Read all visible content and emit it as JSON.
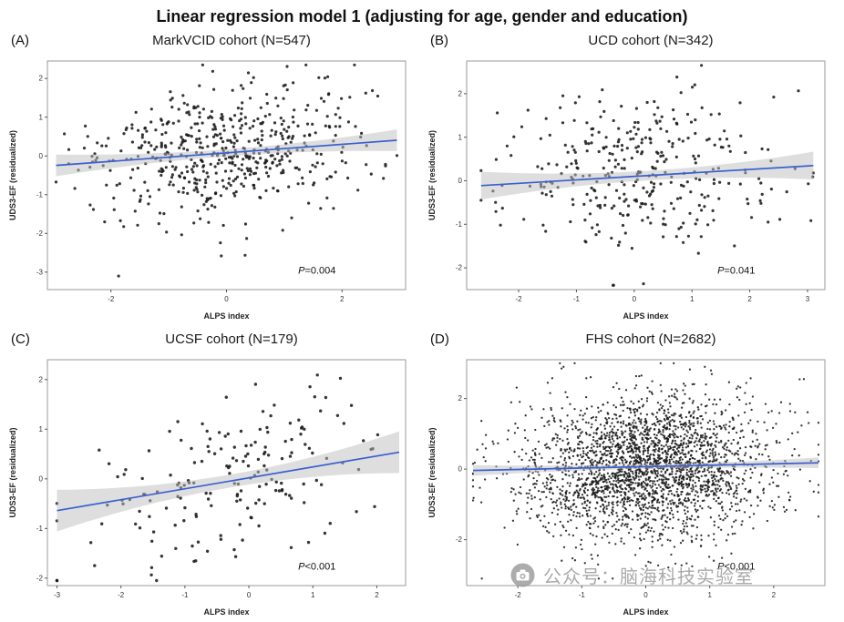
{
  "page": {
    "title": "Linear regression model 1 (adjusting for age, gender and education)"
  },
  "watermark": {
    "icon": "camera-icon",
    "text": "公众号：脑海科技实验室"
  },
  "colors": {
    "point": "#1a1a1a",
    "line": "#3a5fd0",
    "band": "#bdbdbd",
    "border": "#9a9a9a",
    "tick": "#555555",
    "text": "#222222"
  },
  "chart_data": [
    {
      "panel": "(A)",
      "title": "MarkVCID cohort (N=547)",
      "type": "scatter",
      "n": 547,
      "xlabel": "ALPS index",
      "ylabel": "UDS3-EF (residualized)",
      "p_prefix": "P",
      "p_rest": "=0.004",
      "xlim": [
        -3.1,
        3.1
      ],
      "ylim": [
        -3.45,
        2.45
      ],
      "xticks": [
        -2,
        0,
        2
      ],
      "yticks": [
        -3,
        -2,
        -1,
        0,
        1,
        2
      ],
      "regression": {
        "intercept": 0.08,
        "slope": 0.11,
        "x0": -2.95,
        "x1": 2.95
      },
      "band": {
        "center_halfwidth": 0.09,
        "edge_halfwidth": 0.28
      },
      "scatter": {
        "seed": 11,
        "x_mean": 0.0,
        "x_sd": 1.15,
        "x_clip": [
          -2.95,
          2.95
        ],
        "noise_sd": 0.82,
        "y_clip": [
          -3.3,
          2.35
        ],
        "point_radius": 1.6
      }
    },
    {
      "panel": "(B)",
      "title": "UCD cohort (N=342)",
      "type": "scatter",
      "n": 342,
      "xlabel": "ALPS index",
      "ylabel": "UDS3-EF (residualized)",
      "p_prefix": "P",
      "p_rest": "=0.041",
      "xlim": [
        -2.9,
        3.3
      ],
      "ylim": [
        -2.5,
        2.75
      ],
      "xticks": [
        -2,
        -1,
        0,
        1,
        2,
        3
      ],
      "yticks": [
        -2,
        -1,
        0,
        1,
        2
      ],
      "regression": {
        "intercept": 0.1,
        "slope": 0.08,
        "x0": -2.65,
        "x1": 3.1
      },
      "band": {
        "center_halfwidth": 0.11,
        "edge_halfwidth": 0.32
      },
      "scatter": {
        "seed": 22,
        "x_mean": 0.1,
        "x_sd": 1.15,
        "x_clip": [
          -2.65,
          3.1
        ],
        "noise_sd": 0.92,
        "y_clip": [
          -2.4,
          2.65
        ],
        "point_radius": 1.6
      }
    },
    {
      "panel": "(C)",
      "title": "UCSF cohort (N=179)",
      "type": "scatter",
      "n": 179,
      "xlabel": "ALPS index",
      "ylabel": "UDS3-EF (residualized)",
      "p_prefix": "P",
      "p_rest": "<0.001",
      "xlim": [
        -3.15,
        2.45
      ],
      "ylim": [
        -2.15,
        2.4
      ],
      "xticks": [
        -3,
        -2,
        -1,
        0,
        1,
        2
      ],
      "yticks": [
        -2,
        -1,
        0,
        1,
        2
      ],
      "regression": {
        "intercept": 0.02,
        "slope": 0.22,
        "x0": -3.0,
        "x1": 2.35
      },
      "band": {
        "center_halfwidth": 0.13,
        "edge_halfwidth": 0.42
      },
      "scatter": {
        "seed": 33,
        "x_mean": -0.2,
        "x_sd": 1.2,
        "x_clip": [
          -3.0,
          2.35
        ],
        "noise_sd": 0.78,
        "y_clip": [
          -2.05,
          2.3
        ],
        "point_radius": 1.7
      }
    },
    {
      "panel": "(D)",
      "title": "FHS cohort (N=2682)",
      "type": "scatter",
      "n": 2682,
      "xlabel": "ALPS index",
      "ylabel": "UDS3-EF (residualized)",
      "p_prefix": "P",
      "p_rest": "<0.001",
      "xlim": [
        -2.8,
        2.8
      ],
      "ylim": [
        -3.3,
        3.1
      ],
      "xticks": [
        -2,
        -1,
        0,
        1,
        2
      ],
      "yticks": [
        -2,
        0,
        2
      ],
      "regression": {
        "intercept": 0.07,
        "slope": 0.04,
        "x0": -2.7,
        "x1": 2.7
      },
      "band": {
        "center_halfwidth": 0.06,
        "edge_halfwidth": 0.15
      },
      "scatter": {
        "seed": 44,
        "x_mean": 0.0,
        "x_sd": 0.95,
        "x_clip": [
          -2.7,
          2.7
        ],
        "noise_sd": 1.0,
        "y_clip": [
          -3.1,
          3.0
        ],
        "point_radius": 1.15
      }
    }
  ]
}
